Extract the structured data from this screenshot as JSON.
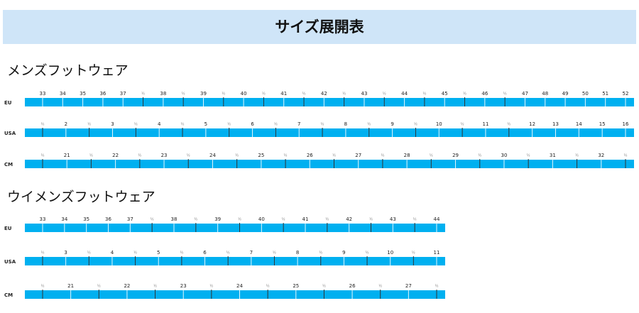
{
  "header": {
    "title": "サイズ展開表"
  },
  "sections": [
    {
      "title": "メンズフットウェア",
      "rows": [
        {
          "label": "EU",
          "ticks": [
            "33",
            "34",
            "35",
            "36",
            "37",
            "½",
            "38",
            "½",
            "39",
            "½",
            "40",
            "½",
            "41",
            "½",
            "42",
            "½",
            "43",
            "½",
            "44",
            "½",
            "45",
            "½",
            "46",
            "½",
            "47",
            "48",
            "49",
            "50",
            "51",
            "52"
          ]
        },
        {
          "label": "USA",
          "ticks": [
            "½",
            "2",
            "½",
            "3",
            "½",
            "4",
            "½",
            "5",
            "½",
            "6",
            "½",
            "7",
            "½",
            "8",
            "½",
            "9",
            "½",
            "10",
            "½",
            "11",
            "½",
            "12",
            "13",
            "14",
            "15",
            "16"
          ]
        },
        {
          "label": "CM",
          "ticks": [
            "½",
            "21",
            "½",
            "22",
            "½",
            "23",
            "½",
            "24",
            "½",
            "25",
            "½",
            "26",
            "½",
            "27",
            "½",
            "28",
            "½",
            "29",
            "½",
            "30",
            "½",
            "31",
            "½",
            "32",
            "½"
          ]
        }
      ]
    },
    {
      "title": "ウイメンズフットウェア",
      "rows": [
        {
          "label": "EU",
          "ticks": [
            "33",
            "34",
            "35",
            "36",
            "37",
            "½",
            "38",
            "½",
            "39",
            "½",
            "40",
            "½",
            "41",
            "½",
            "42",
            "½",
            "43",
            "½",
            "44"
          ]
        },
        {
          "label": "USA",
          "ticks": [
            "½",
            "3",
            "½",
            "4",
            "½",
            "5",
            "½",
            "6",
            "½",
            "7",
            "½",
            "8",
            "½",
            "9",
            "½",
            "10",
            "½",
            "11"
          ]
        },
        {
          "label": "CM",
          "ticks": [
            "½",
            "21",
            "½",
            "22",
            "½",
            "23",
            "½",
            "24",
            "½",
            "25",
            "½",
            "26",
            "½",
            "27",
            "½"
          ]
        }
      ]
    }
  ]
}
